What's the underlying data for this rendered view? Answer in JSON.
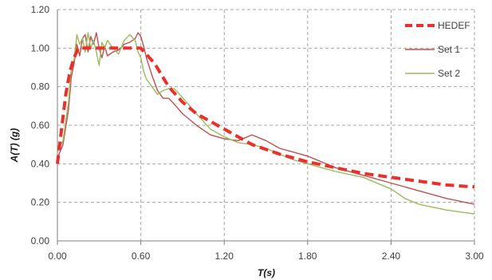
{
  "chart_data": {
    "type": "line",
    "xlabel": "T(s)",
    "ylabel": "A(T) (g)",
    "xlim": [
      0,
      3.0
    ],
    "ylim": [
      0,
      1.2
    ],
    "x_ticks": [
      "0.00",
      "0.60",
      "1.20",
      "1.80",
      "2.40",
      "3.00"
    ],
    "y_ticks": [
      "0.00",
      "0.20",
      "0.40",
      "0.60",
      "0.80",
      "1.00",
      "1.20"
    ],
    "grid": true,
    "legend_position": "top-right",
    "series": [
      {
        "name": "HEDEF",
        "color": "#e8302c",
        "style": "dashed",
        "x": [
          0.0,
          0.03,
          0.06,
          0.09,
          0.12,
          0.15,
          0.2,
          0.3,
          0.4,
          0.5,
          0.6,
          0.7,
          0.8,
          0.9,
          1.0,
          1.2,
          1.4,
          1.6,
          1.8,
          2.0,
          2.2,
          2.4,
          2.6,
          2.8,
          3.0
        ],
        "values": [
          0.4,
          0.58,
          0.76,
          0.88,
          0.95,
          1.0,
          1.0,
          1.0,
          1.0,
          1.0,
          1.0,
          0.92,
          0.8,
          0.72,
          0.66,
          0.58,
          0.5,
          0.45,
          0.41,
          0.38,
          0.35,
          0.33,
          0.31,
          0.29,
          0.28
        ]
      },
      {
        "name": "Set 1",
        "color": "#c0504d",
        "style": "solid",
        "x": [
          0.0,
          0.04,
          0.08,
          0.1,
          0.12,
          0.14,
          0.16,
          0.18,
          0.2,
          0.22,
          0.24,
          0.26,
          0.28,
          0.3,
          0.32,
          0.34,
          0.36,
          0.4,
          0.44,
          0.48,
          0.52,
          0.56,
          0.58,
          0.6,
          0.62,
          0.64,
          0.68,
          0.72,
          0.76,
          0.8,
          0.84,
          0.9,
          1.0,
          1.1,
          1.2,
          1.3,
          1.4,
          1.5,
          1.6,
          1.7,
          1.8,
          1.9,
          2.0,
          2.2,
          2.4,
          2.6,
          2.8,
          3.0
        ],
        "values": [
          0.43,
          0.5,
          0.68,
          0.85,
          0.92,
          1.02,
          0.96,
          1.05,
          1.07,
          0.98,
          1.06,
          1.02,
          1.08,
          1.0,
          0.95,
          1.01,
          0.96,
          0.98,
          0.99,
          1.02,
          1.03,
          1.05,
          1.08,
          1.06,
          1.01,
          0.95,
          0.86,
          0.78,
          0.74,
          0.74,
          0.71,
          0.66,
          0.6,
          0.55,
          0.53,
          0.52,
          0.55,
          0.52,
          0.48,
          0.46,
          0.44,
          0.41,
          0.38,
          0.34,
          0.3,
          0.26,
          0.22,
          0.19
        ]
      },
      {
        "name": "Set 2",
        "color": "#9bbb59",
        "style": "solid",
        "x": [
          0.0,
          0.04,
          0.08,
          0.1,
          0.12,
          0.14,
          0.16,
          0.18,
          0.2,
          0.22,
          0.24,
          0.26,
          0.28,
          0.3,
          0.32,
          0.34,
          0.36,
          0.4,
          0.44,
          0.48,
          0.52,
          0.56,
          0.58,
          0.6,
          0.62,
          0.64,
          0.68,
          0.72,
          0.76,
          0.8,
          0.84,
          0.88,
          0.94,
          1.0,
          1.1,
          1.2,
          1.3,
          1.4,
          1.5,
          1.6,
          1.7,
          1.8,
          1.9,
          2.0,
          2.2,
          2.4,
          2.5,
          2.6,
          2.8,
          3.0
        ],
        "values": [
          0.46,
          0.52,
          0.72,
          0.9,
          0.94,
          1.07,
          1.02,
          1.05,
          0.98,
          1.08,
          1.0,
          1.04,
          0.98,
          0.91,
          1.03,
          1.0,
          1.04,
          1.0,
          0.97,
          1.04,
          1.07,
          1.04,
          0.98,
          0.95,
          0.88,
          0.84,
          0.8,
          0.76,
          0.78,
          0.79,
          0.79,
          0.76,
          0.71,
          0.66,
          0.58,
          0.54,
          0.51,
          0.5,
          0.48,
          0.45,
          0.42,
          0.4,
          0.38,
          0.36,
          0.33,
          0.27,
          0.22,
          0.19,
          0.16,
          0.14
        ]
      }
    ]
  }
}
